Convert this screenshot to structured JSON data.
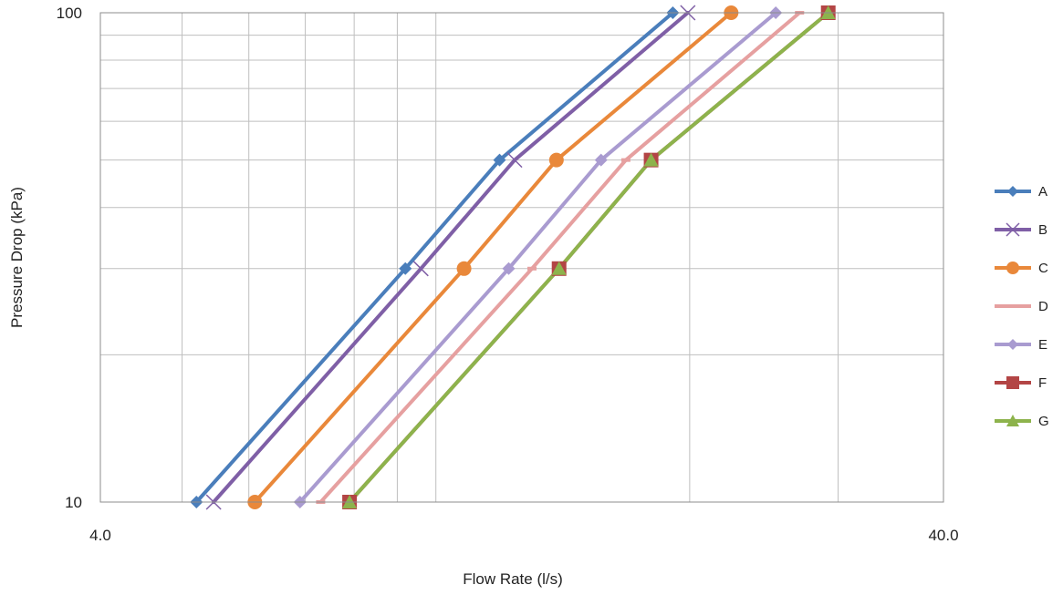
{
  "chart_data": {
    "type": "line",
    "title": "",
    "xlabel": "Flow Rate (l/s)",
    "ylabel": "Pressure Drop (kPa)",
    "x_scale": "log",
    "y_scale": "log",
    "xlim": [
      4.0,
      40.0
    ],
    "ylim": [
      10,
      100
    ],
    "x_tick_labels": [
      "4.0",
      "40.0"
    ],
    "y_tick_labels": [
      "10",
      "100"
    ],
    "grid": true,
    "legend_position": "right",
    "series": [
      {
        "name": "A",
        "color": "#4a7ebb",
        "marker": "diamond",
        "points": [
          [
            5.2,
            10
          ],
          [
            9.2,
            30
          ],
          [
            11.9,
            50
          ],
          [
            19.1,
            100
          ]
        ]
      },
      {
        "name": "B",
        "color": "#7f5fa6",
        "marker": "x",
        "points": [
          [
            5.45,
            10
          ],
          [
            9.6,
            30
          ],
          [
            12.4,
            50
          ],
          [
            19.9,
            100
          ]
        ]
      },
      {
        "name": "C",
        "color": "#e9883a",
        "marker": "circle",
        "points": [
          [
            6.1,
            10
          ],
          [
            10.8,
            30
          ],
          [
            13.9,
            50
          ],
          [
            22.4,
            100
          ]
        ]
      },
      {
        "name": "D",
        "color": "#e6a0a0",
        "marker": "dash",
        "points": [
          [
            7.3,
            10
          ],
          [
            13.0,
            30
          ],
          [
            16.8,
            50
          ],
          [
            27.0,
            100
          ]
        ]
      },
      {
        "name": "E",
        "color": "#a99bd0",
        "marker": "diamond",
        "points": [
          [
            6.9,
            10
          ],
          [
            12.2,
            30
          ],
          [
            15.7,
            50
          ],
          [
            25.3,
            100
          ]
        ]
      },
      {
        "name": "F",
        "color": "#b34545",
        "marker": "square",
        "points": [
          [
            7.9,
            10
          ],
          [
            14.0,
            30
          ],
          [
            18.0,
            50
          ],
          [
            29.2,
            100
          ]
        ]
      },
      {
        "name": "G",
        "color": "#8db34c",
        "marker": "triangle",
        "points": [
          [
            7.9,
            10
          ],
          [
            14.0,
            30
          ],
          [
            18.0,
            50
          ],
          [
            29.2,
            100
          ]
        ]
      }
    ]
  }
}
